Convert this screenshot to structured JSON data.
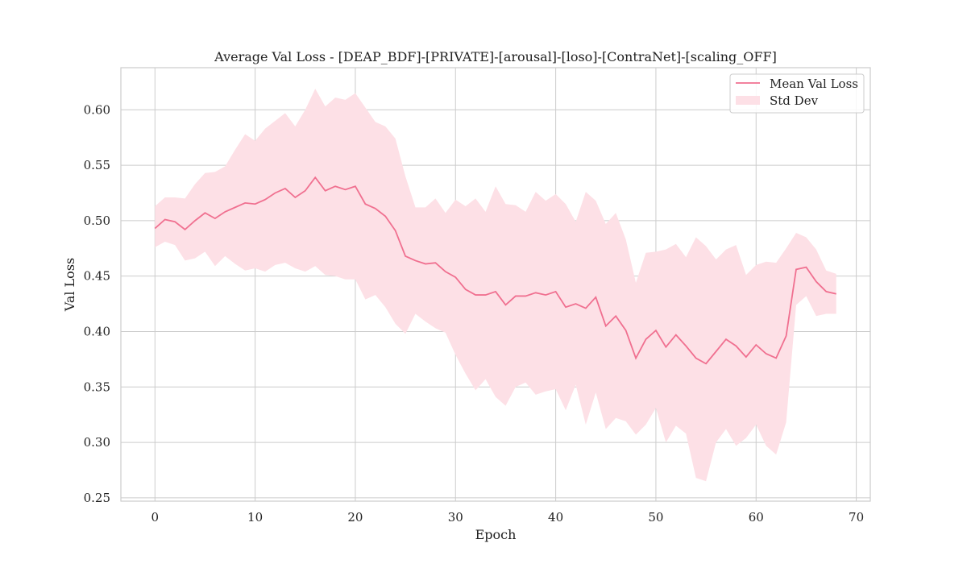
{
  "chart_data": {
    "type": "line",
    "title": "Average Val Loss - [DEAP_BDF]-[PRIVATE]-[arousal]-[loso]-[ContraNet]-[scaling_OFF]",
    "xlabel": "Epoch",
    "ylabel": "Val Loss",
    "xlim": [
      -3.4,
      71.4
    ],
    "ylim": [
      0.247,
      0.638
    ],
    "xticks": [
      0,
      10,
      20,
      30,
      40,
      50,
      60,
      70
    ],
    "yticks": [
      0.25,
      0.3,
      0.35,
      0.4,
      0.45,
      0.5,
      0.55,
      0.6
    ],
    "xtick_labels": [
      "0",
      "10",
      "20",
      "30",
      "40",
      "50",
      "60",
      "70"
    ],
    "ytick_labels": [
      "0.25",
      "0.30",
      "0.35",
      "0.40",
      "0.45",
      "0.50",
      "0.55",
      "0.60"
    ],
    "grid": true,
    "legend_position": "top-right",
    "color": "#f07090",
    "band_color": "#fde0e6",
    "series": [
      {
        "name": "Mean Val Loss",
        "x": [
          0,
          1,
          2,
          3,
          4,
          5,
          6,
          7,
          8,
          9,
          10,
          11,
          12,
          13,
          14,
          15,
          16,
          17,
          18,
          19,
          20,
          21,
          22,
          23,
          24,
          25,
          26,
          27,
          28,
          29,
          30,
          31,
          32,
          33,
          34,
          35,
          36,
          37,
          38,
          39,
          40,
          41,
          42,
          43,
          44,
          45,
          46,
          47,
          48,
          49,
          50,
          51,
          52,
          53,
          54,
          55,
          56,
          57,
          58,
          59,
          60,
          61,
          62,
          63,
          64,
          65,
          66,
          67,
          68
        ],
        "values": [
          0.493,
          0.501,
          0.499,
          0.492,
          0.5,
          0.507,
          0.502,
          0.508,
          0.512,
          0.516,
          0.515,
          0.519,
          0.525,
          0.529,
          0.521,
          0.527,
          0.539,
          0.527,
          0.531,
          0.528,
          0.531,
          0.515,
          0.511,
          0.504,
          0.491,
          0.468,
          0.464,
          0.461,
          0.462,
          0.454,
          0.449,
          0.438,
          0.433,
          0.433,
          0.436,
          0.424,
          0.432,
          0.432,
          0.435,
          0.433,
          0.436,
          0.422,
          0.425,
          0.421,
          0.431,
          0.405,
          0.414,
          0.401,
          0.376,
          0.393,
          0.401,
          0.386,
          0.397,
          0.387,
          0.376,
          0.371,
          0.382,
          0.393,
          0.387,
          0.377,
          0.388,
          0.38,
          0.376,
          0.396,
          0.456,
          0.458,
          0.445,
          0.436,
          0.434
        ]
      },
      {
        "name": "Std Dev",
        "upper": [
          0.513,
          0.521,
          0.521,
          0.52,
          0.533,
          0.543,
          0.544,
          0.549,
          0.564,
          0.578,
          0.572,
          0.583,
          0.59,
          0.597,
          0.585,
          0.6,
          0.619,
          0.603,
          0.611,
          0.609,
          0.615,
          0.602,
          0.589,
          0.585,
          0.574,
          0.54,
          0.512,
          0.512,
          0.52,
          0.507,
          0.519,
          0.513,
          0.52,
          0.508,
          0.531,
          0.515,
          0.514,
          0.508,
          0.526,
          0.518,
          0.524,
          0.515,
          0.499,
          0.526,
          0.518,
          0.497,
          0.507,
          0.483,
          0.444,
          0.471,
          0.472,
          0.474,
          0.479,
          0.467,
          0.485,
          0.477,
          0.465,
          0.474,
          0.478,
          0.451,
          0.46,
          0.463,
          0.462,
          0.475,
          0.489,
          0.485,
          0.474,
          0.455,
          0.452
        ],
        "lower": [
          0.476,
          0.481,
          0.478,
          0.464,
          0.466,
          0.472,
          0.459,
          0.468,
          0.461,
          0.455,
          0.457,
          0.454,
          0.46,
          0.462,
          0.457,
          0.454,
          0.459,
          0.451,
          0.45,
          0.447,
          0.447,
          0.429,
          0.433,
          0.422,
          0.407,
          0.398,
          0.416,
          0.409,
          0.403,
          0.399,
          0.379,
          0.362,
          0.347,
          0.357,
          0.341,
          0.333,
          0.35,
          0.354,
          0.343,
          0.346,
          0.348,
          0.329,
          0.352,
          0.316,
          0.345,
          0.312,
          0.322,
          0.319,
          0.307,
          0.316,
          0.331,
          0.3,
          0.315,
          0.308,
          0.268,
          0.265,
          0.3,
          0.312,
          0.297,
          0.304,
          0.316,
          0.297,
          0.289,
          0.318,
          0.424,
          0.432,
          0.414,
          0.416,
          0.416
        ]
      }
    ]
  }
}
